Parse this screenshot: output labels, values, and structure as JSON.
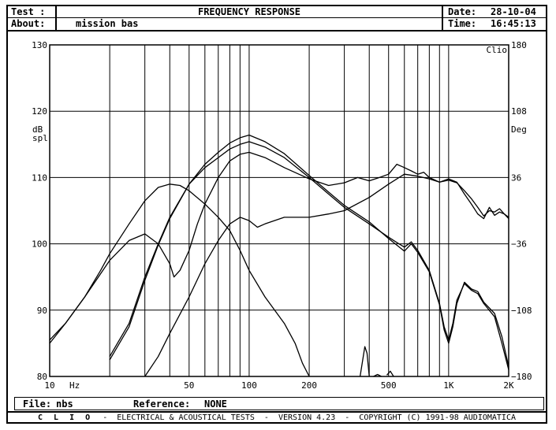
{
  "header": {
    "test_label": "Test :",
    "title": "FREQUENCY RESPONSE",
    "about_label": "About:",
    "about_value": "mission bas",
    "date_label": "Date:",
    "date_value": "28-10-04",
    "time_label": "Time:",
    "time_value": "16:45:13"
  },
  "footer": {
    "file_label": "File:",
    "file_value": "nbs",
    "reference_label": "Reference:",
    "reference_value": "NONE"
  },
  "copyright": {
    "brand": "C L I O",
    "text": "-  ELECTRICAL & ACOUSTICAL TESTS  -  VERSION 4.23  -  COPYRIGHT (C) 1991-98 AUDIOMATICA"
  },
  "chart_data": {
    "type": "line",
    "xscale": "log",
    "xlim": [
      10,
      2000
    ],
    "ylim": [
      80,
      130
    ],
    "y2lim": [
      -180,
      180
    ],
    "ylabel": "dB spl",
    "y2label": "Deg",
    "corner_label": "Clio",
    "x_unit_label": "Hz",
    "grid": true,
    "x_ticks": [
      {
        "value": 10,
        "label": "10"
      },
      {
        "value": 50,
        "label": "50"
      },
      {
        "value": 100,
        "label": "100"
      },
      {
        "value": 200,
        "label": "200"
      },
      {
        "value": 500,
        "label": "500"
      },
      {
        "value": 1000,
        "label": "1K"
      },
      {
        "value": 2000,
        "label": "2K"
      }
    ],
    "x_gridlines": [
      10,
      20,
      30,
      40,
      50,
      60,
      70,
      80,
      90,
      100,
      200,
      300,
      400,
      500,
      600,
      700,
      800,
      900,
      1000,
      2000
    ],
    "y_ticks": [
      80,
      90,
      100,
      110,
      120,
      130
    ],
    "y2_ticks": [
      -180,
      -108,
      -36,
      36,
      108,
      180
    ],
    "series": [
      {
        "values": [
          [
            20,
            83
          ],
          [
            25,
            88
          ],
          [
            30,
            95
          ],
          [
            35,
            100
          ],
          [
            40,
            104
          ],
          [
            50,
            109
          ],
          [
            60,
            111.5
          ],
          [
            70,
            113
          ],
          [
            80,
            114.3
          ],
          [
            90,
            115
          ],
          [
            100,
            115.4
          ],
          [
            120,
            114.6
          ],
          [
            150,
            113
          ],
          [
            200,
            110
          ],
          [
            250,
            107.5
          ],
          [
            300,
            105.5
          ],
          [
            400,
            103
          ],
          [
            500,
            101
          ],
          [
            550,
            100.2
          ],
          [
            600,
            99.5
          ],
          [
            650,
            100.3
          ],
          [
            700,
            99
          ],
          [
            800,
            96
          ],
          [
            900,
            91
          ],
          [
            950,
            87.5
          ],
          [
            1000,
            85.5
          ],
          [
            1050,
            88
          ],
          [
            1100,
            91.5
          ],
          [
            1200,
            94
          ],
          [
            1300,
            93
          ],
          [
            1400,
            92.5
          ],
          [
            1500,
            91
          ],
          [
            1700,
            89
          ],
          [
            1850,
            85
          ],
          [
            2000,
            81
          ]
        ]
      },
      {
        "values": [
          [
            20,
            82.5
          ],
          [
            25,
            87.5
          ],
          [
            30,
            94.5
          ],
          [
            35,
            99.8
          ],
          [
            40,
            103.8
          ],
          [
            50,
            109
          ],
          [
            60,
            112
          ],
          [
            70,
            113.8
          ],
          [
            80,
            115.2
          ],
          [
            90,
            116
          ],
          [
            100,
            116.4
          ],
          [
            120,
            115.4
          ],
          [
            150,
            113.6
          ],
          [
            200,
            110.3
          ],
          [
            250,
            107.8
          ],
          [
            300,
            105.8
          ],
          [
            400,
            103.3
          ],
          [
            500,
            100.8
          ],
          [
            550,
            99.8
          ],
          [
            600,
            98.9
          ],
          [
            650,
            100
          ],
          [
            700,
            98.7
          ],
          [
            800,
            95.8
          ],
          [
            900,
            90.8
          ],
          [
            950,
            87
          ],
          [
            1000,
            85
          ],
          [
            1050,
            87.5
          ],
          [
            1100,
            91
          ],
          [
            1200,
            94.2
          ],
          [
            1300,
            93.2
          ],
          [
            1400,
            92.8
          ],
          [
            1500,
            91.2
          ],
          [
            1700,
            89.5
          ],
          [
            1850,
            86
          ],
          [
            2000,
            81.5
          ]
        ]
      },
      {
        "values": [
          [
            30,
            80
          ],
          [
            35,
            83
          ],
          [
            40,
            86.5
          ],
          [
            50,
            92
          ],
          [
            60,
            97
          ],
          [
            70,
            100.5
          ],
          [
            80,
            103
          ],
          [
            90,
            104
          ],
          [
            100,
            103.5
          ],
          [
            110,
            102.5
          ],
          [
            120,
            103
          ],
          [
            150,
            104
          ],
          [
            200,
            104
          ],
          [
            250,
            104.5
          ],
          [
            300,
            105
          ],
          [
            400,
            107
          ],
          [
            500,
            109
          ],
          [
            600,
            110.5
          ],
          [
            700,
            110.2
          ],
          [
            800,
            109.8
          ],
          [
            900,
            109.3
          ],
          [
            1000,
            109.6
          ],
          [
            1100,
            109.2
          ],
          [
            1200,
            108
          ],
          [
            1300,
            106.8
          ],
          [
            1400,
            105.5
          ],
          [
            1500,
            104.2
          ],
          [
            1600,
            105
          ],
          [
            1700,
            104.8
          ],
          [
            1800,
            105.3
          ],
          [
            1900,
            104.5
          ],
          [
            2000,
            104
          ]
        ]
      },
      {
        "values": [
          [
            10,
            85.5
          ],
          [
            12,
            88
          ],
          [
            15,
            92
          ],
          [
            18,
            96
          ],
          [
            20,
            98.5
          ],
          [
            25,
            103
          ],
          [
            30,
            106.5
          ],
          [
            35,
            108.5
          ],
          [
            40,
            109
          ],
          [
            45,
            108.8
          ],
          [
            50,
            108
          ],
          [
            60,
            106
          ],
          [
            70,
            104
          ],
          [
            80,
            102
          ],
          [
            90,
            99
          ],
          [
            100,
            96
          ],
          [
            120,
            92
          ],
          [
            150,
            88
          ],
          [
            170,
            85
          ],
          [
            185,
            82
          ],
          [
            200,
            80
          ]
        ]
      },
      {
        "values": [
          [
            10,
            85
          ],
          [
            12,
            88
          ],
          [
            15,
            92
          ],
          [
            18,
            95.5
          ],
          [
            20,
            97.5
          ],
          [
            25,
            100.5
          ],
          [
            30,
            101.5
          ],
          [
            35,
            100
          ],
          [
            40,
            97
          ],
          [
            42,
            95
          ],
          [
            45,
            96
          ],
          [
            50,
            99
          ],
          [
            55,
            103
          ],
          [
            60,
            106
          ],
          [
            70,
            110
          ],
          [
            80,
            112.5
          ],
          [
            90,
            113.5
          ],
          [
            100,
            113.8
          ],
          [
            120,
            113
          ],
          [
            150,
            111.5
          ],
          [
            200,
            109.8
          ],
          [
            250,
            108.8
          ],
          [
            300,
            109.2
          ],
          [
            350,
            110
          ],
          [
            400,
            109.5
          ],
          [
            450,
            110
          ],
          [
            500,
            110.5
          ],
          [
            550,
            112
          ],
          [
            600,
            111.5
          ],
          [
            650,
            111
          ],
          [
            700,
            110.5
          ],
          [
            750,
            110.8
          ],
          [
            800,
            110
          ],
          [
            900,
            109.3
          ],
          [
            1000,
            109.8
          ],
          [
            1100,
            109.3
          ],
          [
            1200,
            107.5
          ],
          [
            1300,
            106
          ],
          [
            1400,
            104.5
          ],
          [
            1500,
            103.8
          ],
          [
            1600,
            105.5
          ],
          [
            1700,
            104.3
          ],
          [
            1800,
            104.8
          ],
          [
            1900,
            104.5
          ],
          [
            2000,
            103.8
          ]
        ]
      },
      {
        "values": [
          [
            360,
            80
          ],
          [
            380,
            84.5
          ],
          [
            390,
            83.5
          ],
          [
            400,
            80
          ]
        ]
      },
      {
        "values": [
          [
            420,
            80
          ],
          [
            440,
            80.3
          ],
          [
            460,
            80
          ]
        ]
      },
      {
        "values": [
          [
            490,
            80.2
          ],
          [
            510,
            80.8
          ],
          [
            530,
            80
          ]
        ]
      }
    ]
  }
}
